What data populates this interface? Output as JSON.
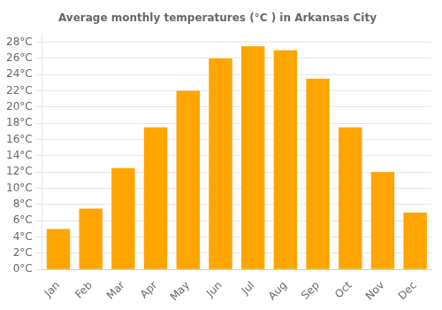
{
  "chart_data": {
    "type": "bar",
    "title": "Average monthly temperatures (°C ) in Arkansas City",
    "categories": [
      "Jan",
      "Feb",
      "Mar",
      "Apr",
      "May",
      "Jun",
      "Jul",
      "Aug",
      "Sep",
      "Oct",
      "Nov",
      "Dec"
    ],
    "values": [
      5.0,
      7.5,
      12.5,
      17.5,
      22.0,
      26.0,
      27.5,
      27.0,
      23.5,
      17.5,
      12.0,
      7.0
    ],
    "color": "#FFA500",
    "ylim": [
      0,
      29
    ],
    "yticks": [
      {
        "value": 0,
        "label": "0°C"
      },
      {
        "value": 2,
        "label": "2°C"
      },
      {
        "value": 4,
        "label": "4°C"
      },
      {
        "value": 6,
        "label": "6°C"
      },
      {
        "value": 8,
        "label": "8°C"
      },
      {
        "value": 10,
        "label": "10°C"
      },
      {
        "value": 12,
        "label": "12°C"
      },
      {
        "value": 14,
        "label": "14°C"
      },
      {
        "value": 16,
        "label": "16°C"
      },
      {
        "value": 18,
        "label": "18°C"
      },
      {
        "value": 20,
        "label": "20°C"
      },
      {
        "value": 22,
        "label": "22°C"
      },
      {
        "value": 24,
        "label": "24°C"
      },
      {
        "value": 26,
        "label": "26°C"
      },
      {
        "value": 28,
        "label": "28°C"
      }
    ],
    "grid": true
  }
}
